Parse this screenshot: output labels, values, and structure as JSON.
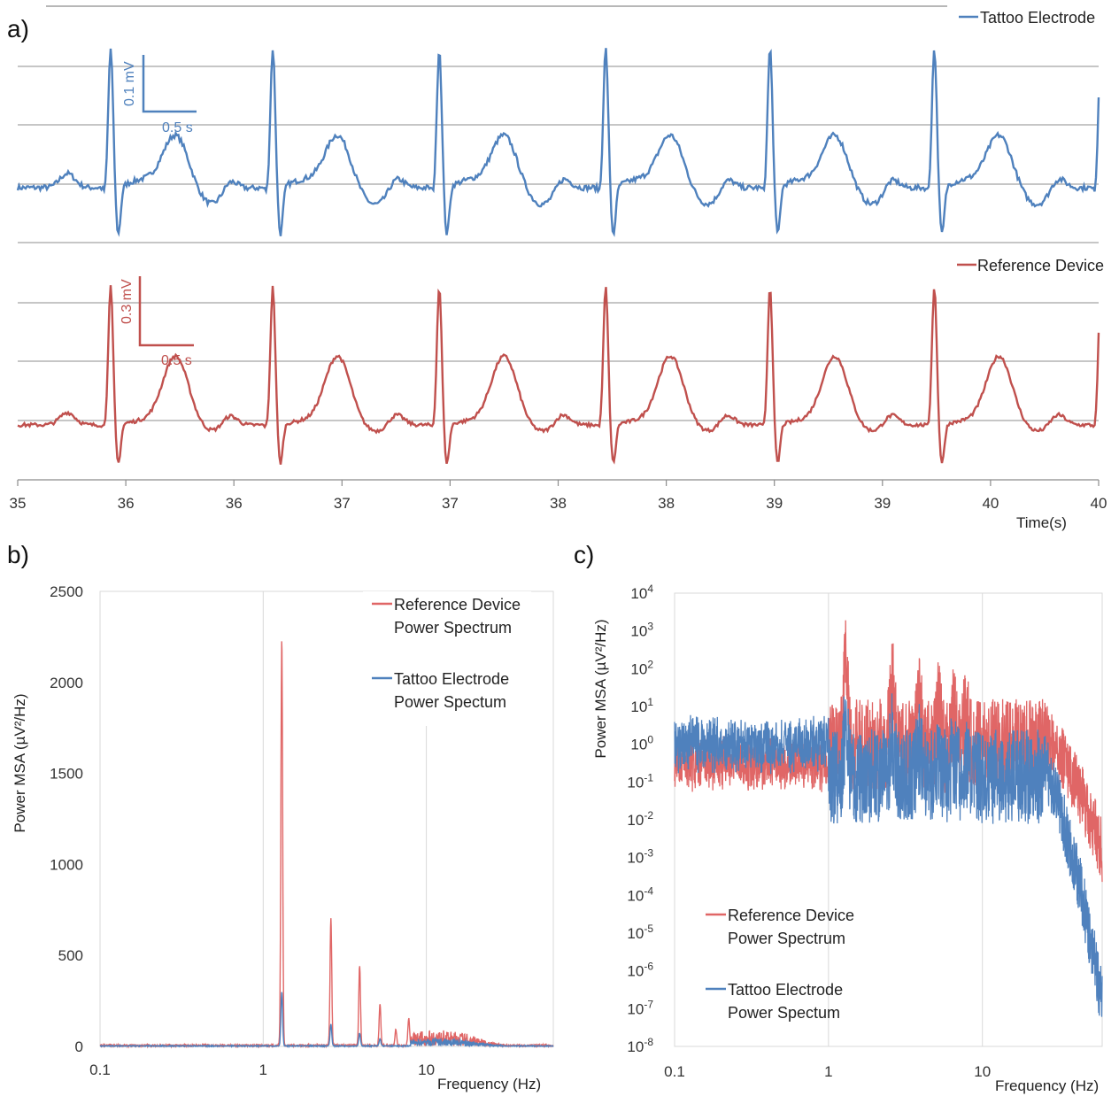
{
  "panels": {
    "a": "a)",
    "b": "b)",
    "c": "c)"
  },
  "colors": {
    "blue": "#4f81bd",
    "red": "#c0504d",
    "red_light": "#e06666",
    "grid": "#8c8c8c",
    "grid_light": "#d9d9d9"
  },
  "chart_data": [
    {
      "id": "a",
      "type": "line",
      "xlabel": "Time(s)",
      "xlim": [
        35,
        40
      ],
      "x_tick_labels": [
        "35",
        "36",
        "36",
        "37",
        "37",
        "38",
        "38",
        "39",
        "39",
        "40",
        "40"
      ],
      "beat_times_s": [
        35.43,
        36.18,
        36.95,
        37.72,
        38.48,
        39.24,
        40.01,
        40.77
      ],
      "series": [
        {
          "name": "Tattoo Electrode",
          "color": "#4f81bd",
          "scalebar_amplitude": "0.1 mV",
          "scalebar_time": "0.5 s"
        },
        {
          "name": "Reference Device",
          "color": "#c0504d",
          "scalebar_amplitude": "0.3 mV",
          "scalebar_time": "0.5 s"
        }
      ]
    },
    {
      "id": "b",
      "type": "line",
      "xlabel": "Frequency (Hz)",
      "ylabel": "Power MSA (µV²/Hz)",
      "x_scale": "log",
      "xlim": [
        0.1,
        60
      ],
      "ylim": [
        0,
        2500
      ],
      "x_tick_labels": [
        "0.1",
        "1",
        "10"
      ],
      "y_tick_labels": [
        "0",
        "500",
        "1000",
        "1500",
        "2000",
        "2500"
      ],
      "series": [
        {
          "name": "Reference Device Power Spectrum",
          "legend_lines": [
            "Reference Device",
            "Power Spectrum"
          ],
          "color": "#e06666",
          "peaks": [
            {
              "x": 1.3,
              "y": 2240
            },
            {
              "x": 2.6,
              "y": 700
            },
            {
              "x": 3.9,
              "y": 440
            },
            {
              "x": 5.2,
              "y": 230
            },
            {
              "x": 7.8,
              "y": 150
            },
            {
              "x": 6.5,
              "y": 90
            }
          ]
        },
        {
          "name": "Tattoo Electrode Power Spectum",
          "legend_lines": [
            "Tattoo Electrode",
            "Power Spectum"
          ],
          "color": "#4f81bd",
          "peaks": [
            {
              "x": 1.3,
              "y": 300
            },
            {
              "x": 2.6,
              "y": 120
            },
            {
              "x": 3.9,
              "y": 70
            },
            {
              "x": 5.2,
              "y": 40
            }
          ]
        }
      ]
    },
    {
      "id": "c",
      "type": "line",
      "xlabel": "Frequency (Hz)",
      "ylabel": "Power MSA (µV²/Hz)",
      "x_scale": "log",
      "y_scale": "log",
      "xlim": [
        0.1,
        60
      ],
      "ylim": [
        1e-08,
        10000.0
      ],
      "x_tick_labels": [
        "0.1",
        "1",
        "10"
      ],
      "y_tick_exponents": [
        "4",
        "3",
        "2",
        "1",
        "0",
        "-1",
        "-2",
        "-3",
        "-4",
        "-5",
        "-6",
        "-7",
        "-8"
      ],
      "y_tick_base": "10",
      "series": [
        {
          "name": "Reference Device Power Spectrum",
          "legend_lines": [
            "Reference Device",
            "Power Spectrum"
          ],
          "color": "#e06666"
        },
        {
          "name": "Tattoo Electrode Power Spectum",
          "legend_lines": [
            "Tattoo Electrode",
            "Power Spectum"
          ],
          "color": "#4f81bd"
        }
      ]
    }
  ]
}
